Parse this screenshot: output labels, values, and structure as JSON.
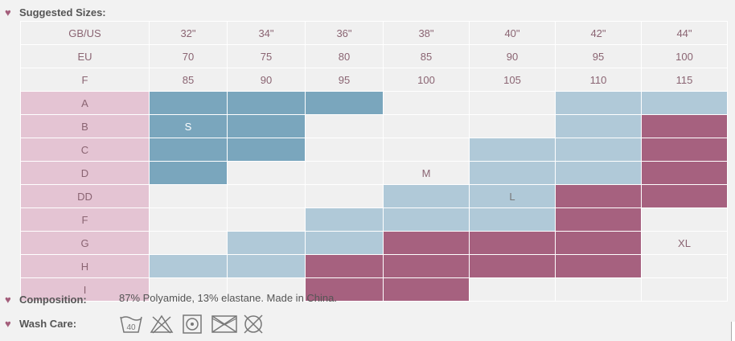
{
  "suggested_label": "Suggested Sizes:",
  "composition_label": "Composition:",
  "composition_value": "87% Polyamide, 13% elastane. Made in China.",
  "wash_care_label": "Wash Care:",
  "header_rows": [
    {
      "label": "GB/US",
      "values": [
        "32\"",
        "34\"",
        "36\"",
        "38\"",
        "40\"",
        "42\"",
        "44\""
      ]
    },
    {
      "label": "EU",
      "values": [
        "70",
        "75",
        "80",
        "85",
        "90",
        "95",
        "100"
      ]
    },
    {
      "label": "F",
      "values": [
        "85",
        "90",
        "95",
        "100",
        "105",
        "110",
        "115"
      ]
    }
  ],
  "cups": [
    "A",
    "B",
    "C",
    "D",
    "DD",
    "F",
    "G",
    "H",
    "I"
  ],
  "grid": [
    [
      "S",
      "S",
      "S",
      "",
      "",
      "M",
      "M"
    ],
    [
      "S",
      "S",
      "",
      "",
      "",
      "M",
      "XL"
    ],
    [
      "S",
      "S",
      "",
      "",
      "M",
      "M",
      "XL"
    ],
    [
      "S",
      "",
      "",
      "",
      "M",
      "M",
      "XL"
    ],
    [
      "",
      "",
      "",
      "M",
      "M",
      "XL",
      "XL"
    ],
    [
      "",
      "",
      "M",
      "M",
      "M",
      "XL",
      ""
    ],
    [
      "",
      "M",
      "M",
      "XL",
      "XL",
      "XL",
      ""
    ],
    [
      "M",
      "M",
      "XL",
      "XL",
      "XL",
      "XL",
      ""
    ],
    [
      "",
      "",
      "XL",
      "XL",
      "",
      "",
      ""
    ]
  ],
  "labels": [
    {
      "row": 1,
      "col": 0,
      "text": "S"
    },
    {
      "row": 3,
      "col": 3,
      "text": "M"
    },
    {
      "row": 4,
      "col": 4,
      "text": "L"
    },
    {
      "row": 6,
      "col": 6,
      "text": "XL"
    }
  ],
  "wash_icons": [
    "wash-40-icon",
    "no-bleach-icon",
    "tumble-dry-icon",
    "no-iron-icon",
    "no-dryclean-icon"
  ],
  "colors": {
    "S": "#7aa6bd",
    "M": "#b0c9d8",
    "XL": "#a6617f",
    "cup": "#e4c4d3",
    "accent": "#a45e7b"
  }
}
